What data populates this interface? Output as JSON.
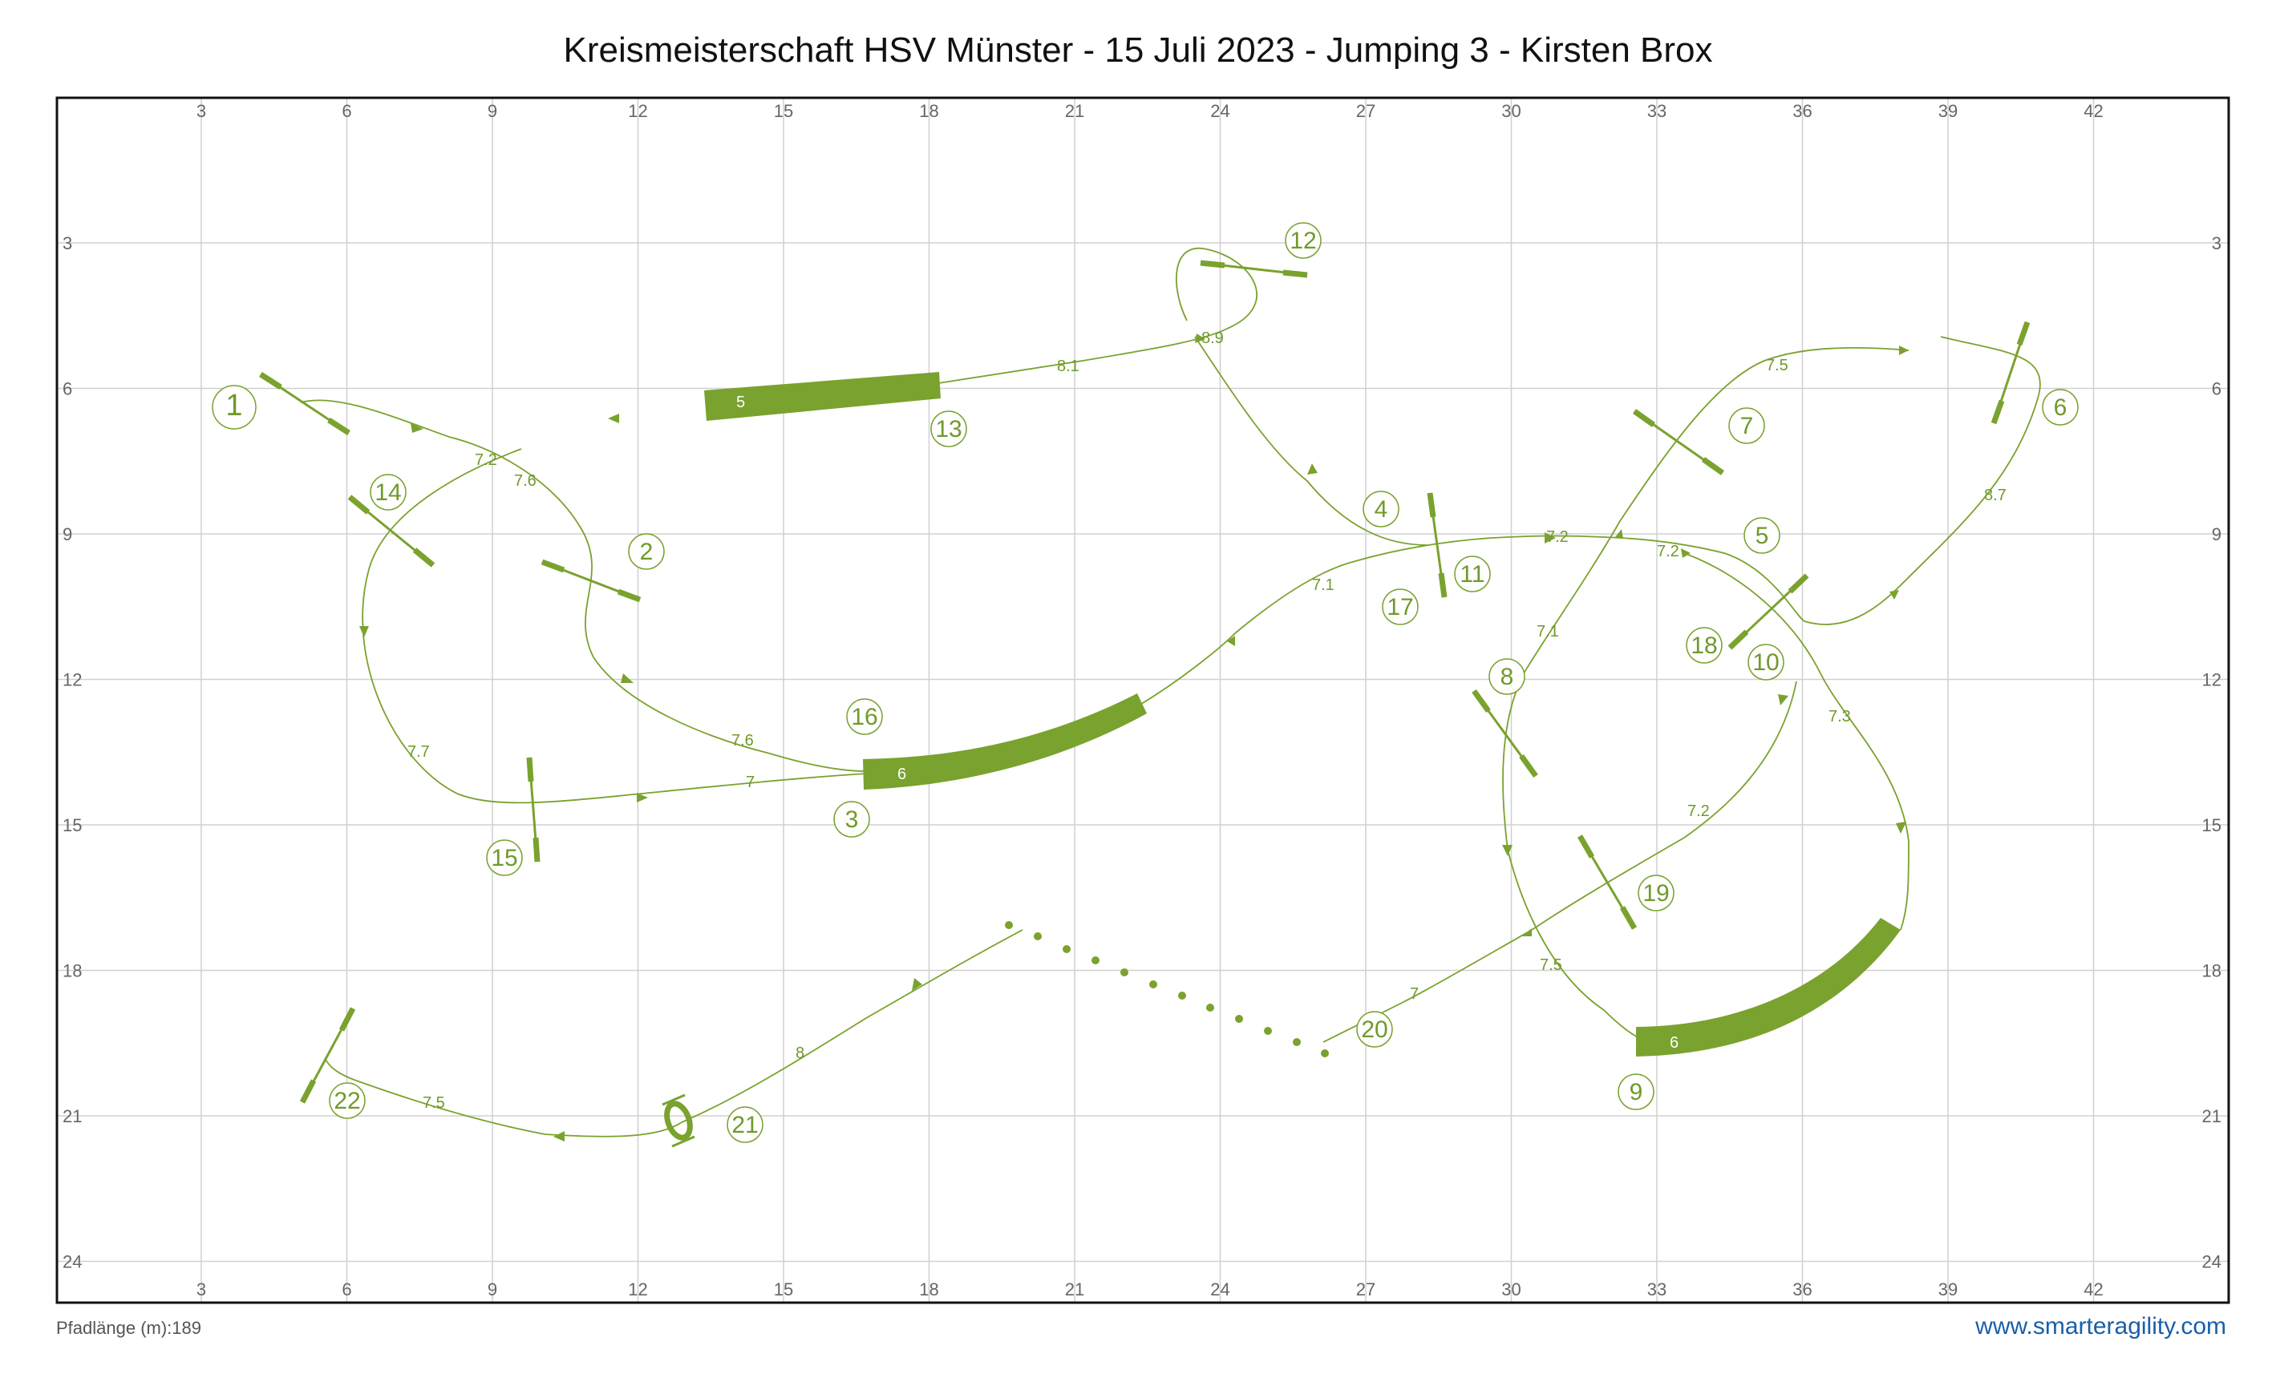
{
  "title": "Kreismeisterschaft HSV Münster - 15 Juli 2023 - Jumping 3 - Kirsten Brox",
  "path_length": "Pfadlänge (m):189",
  "website": "www.smarteragility.com",
  "colors": {
    "course": "#7aa22e",
    "grid": "#d0d0d0",
    "frame": "#111111",
    "link": "#1a5fa8"
  },
  "x_ticks": [
    "3",
    "6",
    "9",
    "12",
    "15",
    "18",
    "21",
    "24",
    "27",
    "30",
    "33",
    "36",
    "39",
    "42"
  ],
  "y_ticks": [
    "3",
    "6",
    "9",
    "12",
    "15",
    "18",
    "21",
    "24"
  ],
  "tunnels": [
    {
      "id": "tunnel-5",
      "label": "5"
    },
    {
      "id": "tunnel-6a",
      "label": "6"
    },
    {
      "id": "tunnel-6b",
      "label": "6"
    }
  ],
  "obstacle_numbers": [
    {
      "id": "1",
      "label": "1"
    },
    {
      "id": "2",
      "label": "2"
    },
    {
      "id": "3",
      "label": "3"
    },
    {
      "id": "4",
      "label": "4"
    },
    {
      "id": "5",
      "label": "5"
    },
    {
      "id": "6",
      "label": "6"
    },
    {
      "id": "7",
      "label": "7"
    },
    {
      "id": "8",
      "label": "8"
    },
    {
      "id": "9",
      "label": "9"
    },
    {
      "id": "10",
      "label": "10"
    },
    {
      "id": "11",
      "label": "11"
    },
    {
      "id": "12",
      "label": "12"
    },
    {
      "id": "13",
      "label": "13"
    },
    {
      "id": "14",
      "label": "14"
    },
    {
      "id": "15",
      "label": "15"
    },
    {
      "id": "16",
      "label": "16"
    },
    {
      "id": "17",
      "label": "17"
    },
    {
      "id": "18",
      "label": "18"
    },
    {
      "id": "19",
      "label": "19"
    },
    {
      "id": "20",
      "label": "20"
    },
    {
      "id": "21",
      "label": "21"
    },
    {
      "id": "22",
      "label": "22"
    }
  ],
  "distance_labels": [
    "7.2",
    "7.6",
    "7.6",
    "7",
    "7.7",
    "8.1",
    "8.9",
    "7.1",
    "7.2",
    "7.2",
    "7.5",
    "8.7",
    "7.1",
    "7.3",
    "7.2",
    "7.5",
    "7",
    "8",
    "7.5"
  ]
}
